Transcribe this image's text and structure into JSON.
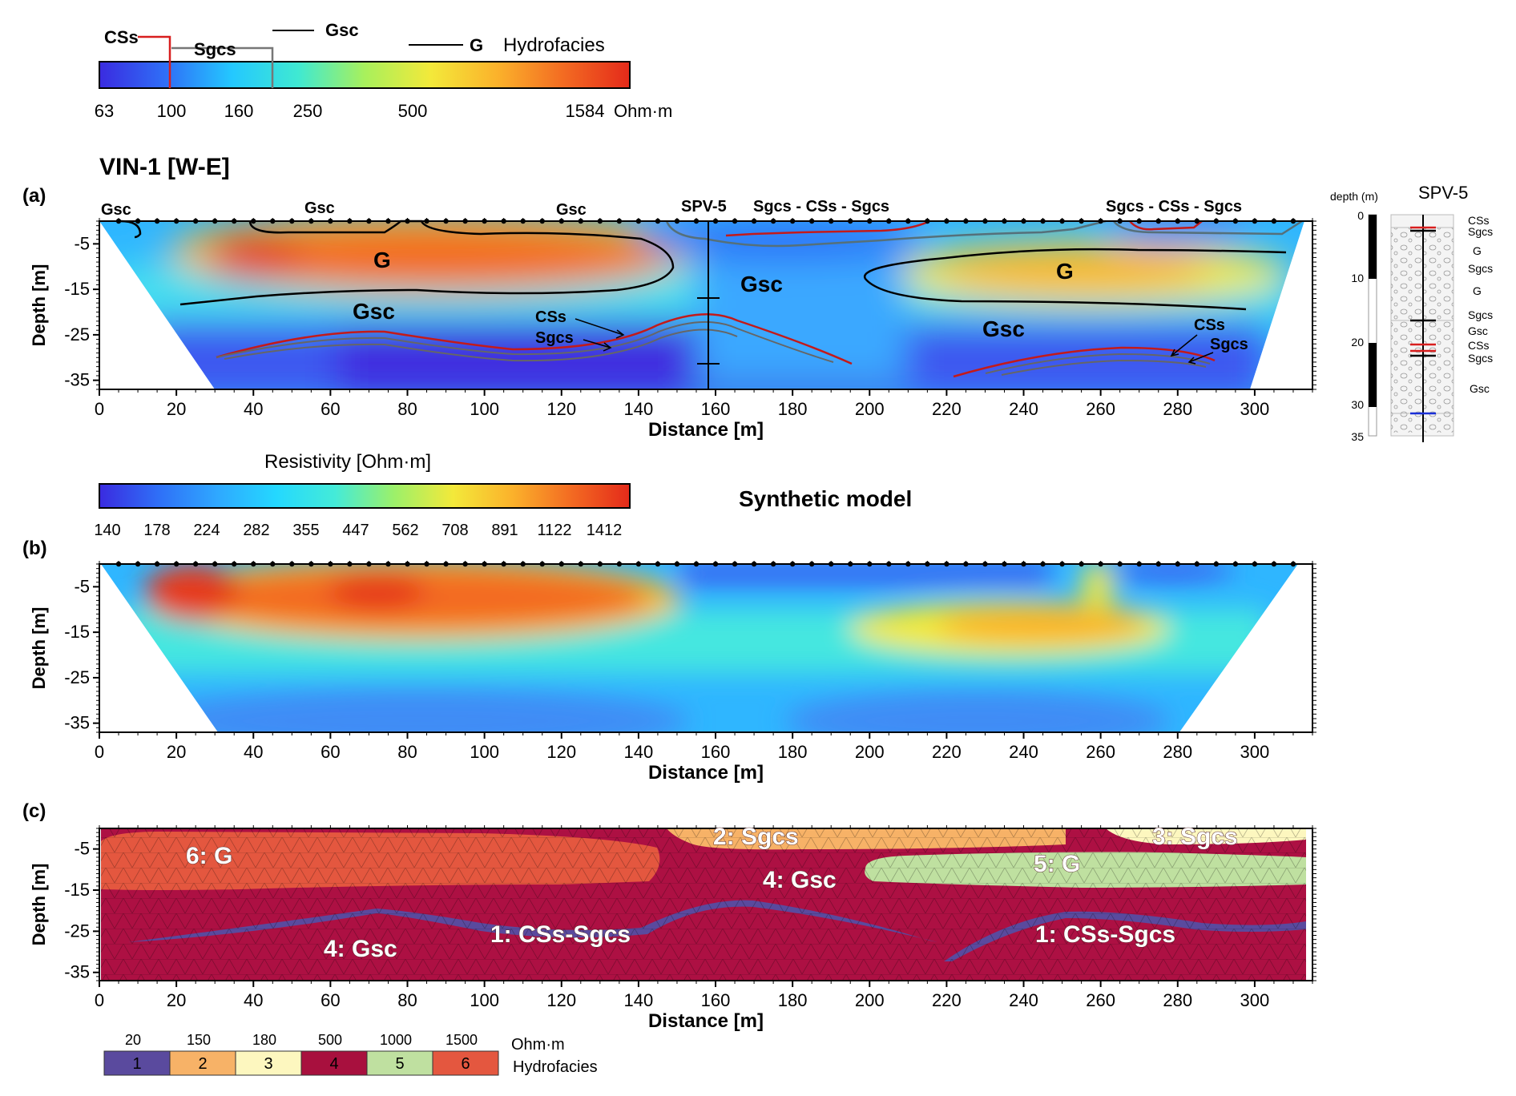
{
  "hydrofacies_bar": {
    "label": "Hydrofacies",
    "unit": "Ohm·m",
    "ticks": [
      "63",
      "100",
      "160",
      "250",
      "500",
      "1584"
    ],
    "classes": [
      "CSs",
      "Sgcs",
      "Gsc",
      "G"
    ],
    "colors": [
      "#3a2be0",
      "#2f6ff7",
      "#24c8ff",
      "#3fe9d2",
      "#a8f05c",
      "#f3e93a",
      "#fbb22b",
      "#f36b22",
      "#e42a1a"
    ]
  },
  "panel_a": {
    "letter": "(a)",
    "title": "VIN-1 [W-E]",
    "xlabel": "Distance [m]",
    "ylabel": "Depth [m]",
    "xticks": [
      "0",
      "20",
      "40",
      "60",
      "80",
      "100",
      "120",
      "140",
      "160",
      "180",
      "200",
      "220",
      "240",
      "260",
      "280",
      "300"
    ],
    "yticks": [
      "-5",
      "-15",
      "-25",
      "-35"
    ],
    "top_labels": [
      "Gsc",
      "Gsc",
      "Gsc",
      "SPV-5",
      "Sgcs - CSs - Sgcs",
      "Sgcs - CSs - Sgcs"
    ],
    "in_labels": {
      "g1": "G",
      "g2": "G",
      "gsc1": "Gsc",
      "gsc2": "Gsc",
      "gsc3": "Gsc",
      "css1": "CSs",
      "sgcs1": "Sgcs",
      "css2": "CSs",
      "sgcs2": "Sgcs"
    }
  },
  "borehole": {
    "title": "SPV-5",
    "depth_label": "depth (m)",
    "ticks": [
      "0",
      "10",
      "20",
      "30",
      "35"
    ],
    "layers": [
      "CSs",
      "Sgcs",
      "G",
      "Sgcs",
      "G",
      "Sgcs",
      "Gsc",
      "CSs",
      "Sgcs",
      "Gsc"
    ]
  },
  "resistivity_bar": {
    "title": "Resistivity [Ohm·m]",
    "ticks": [
      "140",
      "178",
      "224",
      "282",
      "355",
      "447",
      "562",
      "708",
      "891",
      "1122",
      "1412"
    ]
  },
  "panel_b": {
    "letter": "(b)",
    "title": "Synthetic model",
    "xlabel": "Distance [m]",
    "ylabel": "Depth [m]",
    "xticks": [
      "0",
      "20",
      "40",
      "60",
      "80",
      "100",
      "120",
      "140",
      "160",
      "180",
      "200",
      "220",
      "240",
      "260",
      "280",
      "300"
    ],
    "yticks": [
      "-5",
      "-15",
      "-25",
      "-35"
    ]
  },
  "panel_c": {
    "letter": "(c)",
    "xlabel": "Distance [m]",
    "ylabel": "Depth [m]",
    "xticks": [
      "0",
      "20",
      "40",
      "60",
      "80",
      "100",
      "120",
      "140",
      "160",
      "180",
      "200",
      "220",
      "240",
      "260",
      "280",
      "300"
    ],
    "yticks": [
      "-5",
      "-15",
      "-25",
      "-35"
    ],
    "labels": [
      "6: G",
      "2: Sgcs",
      "3: Sgcs",
      "5: G",
      "4: Gsc",
      "4: Gsc",
      "1: CSs-Sgcs",
      "1: CSs-Sgcs"
    ]
  },
  "legend_c": {
    "unit": "Ohm·m",
    "label": "Hydrofacies",
    "values": [
      "20",
      "150",
      "180",
      "500",
      "1000",
      "1500"
    ],
    "classes": [
      "1",
      "2",
      "3",
      "4",
      "5",
      "6"
    ],
    "colors": [
      "#5a4a9e",
      "#f7b267",
      "#fdf7bf",
      "#a8103e",
      "#bfe0a0",
      "#e4573f"
    ]
  },
  "chart_data": [
    {
      "type": "heatmap",
      "title": "VIN-1 [W-E]",
      "xlabel": "Distance [m]",
      "ylabel": "Depth [m]",
      "xlim": [
        0,
        315
      ],
      "ylim": [
        -37,
        0
      ],
      "colorbar": {
        "label": "Hydrofacies",
        "unit": "Ohm·m",
        "ticks": [
          63,
          100,
          160,
          250,
          500,
          1584
        ]
      },
      "regions": [
        {
          "name": "G",
          "x_range": [
            12,
            150
          ],
          "depth_range": [
            1,
            17
          ]
        },
        {
          "name": "G",
          "x_range": [
            198,
            300
          ],
          "depth_range": [
            5,
            20
          ]
        },
        {
          "name": "Gsc",
          "x_range": [
            150,
            205
          ],
          "depth_range": [
            0,
            37
          ]
        },
        {
          "name": "Sgcs - CSs - Sgcs",
          "x_range": [
            155,
            215
          ],
          "depth_range": [
            0,
            4
          ]
        },
        {
          "name": "Sgcs - CSs - Sgcs",
          "x_range": [
            262,
            312
          ],
          "depth_range": [
            0,
            4
          ]
        },
        {
          "name": "CSs",
          "x_range": [
            30,
            195
          ],
          "depth_range": [
            22,
            33
          ]
        },
        {
          "name": "CSs",
          "x_range": [
            222,
            290
          ],
          "depth_range": [
            28,
            34
          ]
        }
      ]
    },
    {
      "type": "heatmap",
      "title": "Synthetic model",
      "xlabel": "Distance [m]",
      "ylabel": "Depth [m]",
      "xlim": [
        0,
        315
      ],
      "ylim": [
        -37,
        0
      ],
      "colorbar": {
        "label": "Resistivity [Ohm·m]",
        "ticks": [
          140,
          178,
          224,
          282,
          355,
          447,
          562,
          708,
          891,
          1122,
          1412
        ]
      }
    },
    {
      "type": "heatmap",
      "xlabel": "Distance [m]",
      "ylabel": "Depth [m]",
      "xlim": [
        0,
        315
      ],
      "ylim": [
        -37,
        0
      ],
      "classes": [
        {
          "id": 1,
          "name": "CSs-Sgcs",
          "resistivity": 20
        },
        {
          "id": 2,
          "name": "Sgcs",
          "resistivity": 150
        },
        {
          "id": 3,
          "name": "Sgcs",
          "resistivity": 180
        },
        {
          "id": 4,
          "name": "Gsc",
          "resistivity": 500
        },
        {
          "id": 5,
          "name": "G",
          "resistivity": 1000
        },
        {
          "id": 6,
          "name": "G",
          "resistivity": 1500
        }
      ]
    }
  ]
}
